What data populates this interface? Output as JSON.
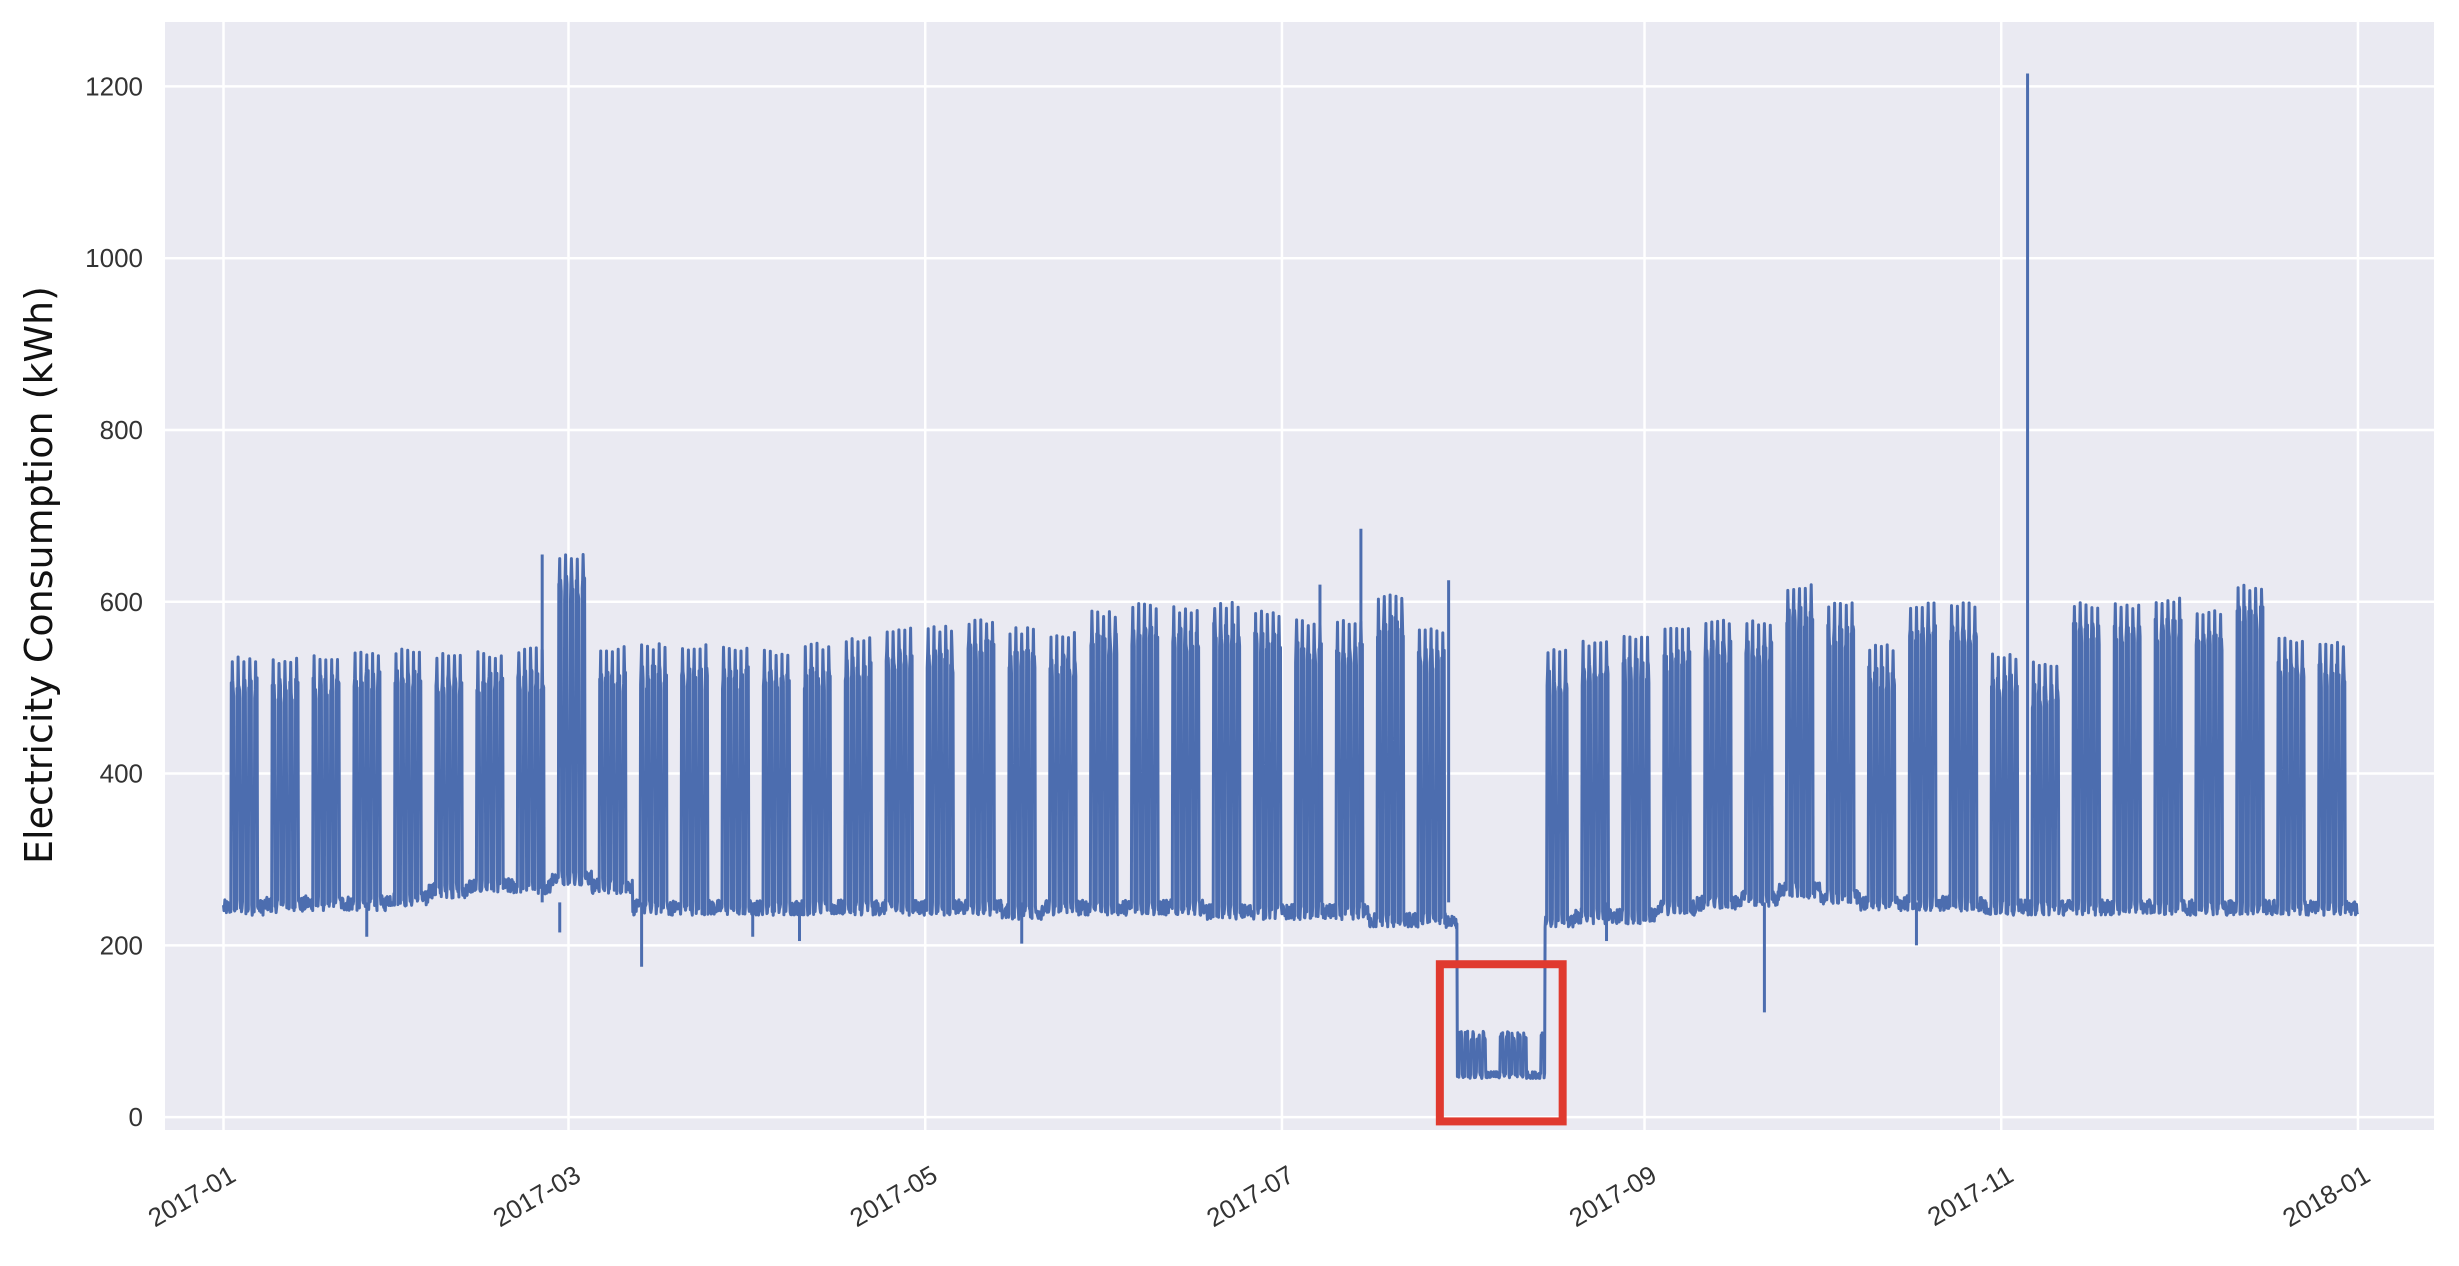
{
  "chart_data": {
    "type": "line",
    "title": "",
    "xlabel": "",
    "ylabel": "Electricity Consumption (kWh)",
    "xlim": [
      "2016-12-22",
      "2018-01-14"
    ],
    "ylim": [
      -15,
      1275
    ],
    "grid": true,
    "x_ticks": [
      "2017-01",
      "2017-03",
      "2017-05",
      "2017-07",
      "2017-09",
      "2017-11",
      "2018-01"
    ],
    "y_ticks": [
      0,
      200,
      400,
      600,
      800,
      1000,
      1200
    ],
    "series": [
      {
        "color": "#4c6daf",
        "start": "2017-01-01",
        "end": "2017-12-31",
        "weekday_peak_kwh": [
          537,
          535,
          540,
          545,
          545,
          540,
          542,
          548,
          655,
          548,
          552,
          550,
          550,
          545,
          552,
          560,
          570,
          572,
          580,
          570,
          565,
          590,
          598,
          595,
          600,
          590,
          580,
          580,
          610,
          570,
          540,
          540,
          545,
          555,
          560,
          570,
          580,
          580,
          620,
          600,
          550,
          600,
          600,
          540,
          530,
          600,
          598,
          605,
          590,
          620,
          560,
          555,
          545,
          540,
          530,
          530,
          525,
          515,
          515,
          520,
          520,
          540,
          538,
          530,
          535,
          530,
          525,
          520,
          520,
          510,
          505
        ],
        "baseline_kwh": [
          245,
          248,
          250,
          250,
          255,
          265,
          270,
          270,
          280,
          270,
          245,
          245,
          245,
          245,
          245,
          245,
          245,
          245,
          245,
          240,
          245,
          245,
          245,
          245,
          240,
          240,
          240,
          240,
          230,
          230,
          230,
          230,
          230,
          235,
          235,
          245,
          250,
          255,
          265,
          258,
          250,
          250,
          250,
          245,
          245,
          245,
          245,
          245,
          245,
          245,
          245,
          245,
          245,
          245,
          245,
          245,
          250,
          250,
          250,
          250,
          250,
          255,
          255,
          255,
          260,
          255,
          250,
          250,
          250,
          250,
          250
        ],
        "outage": {
          "start": "2017-07-31",
          "end": "2017-08-15",
          "low_kwh": 45,
          "high_kwh": 100
        },
        "spikes": [
          {
            "date": "2017-02-24",
            "value": 655
          },
          {
            "date": "2017-07-14",
            "value": 685
          },
          {
            "date": "2017-07-07",
            "value": 620
          },
          {
            "date": "2017-07-29",
            "value": 625
          },
          {
            "date": "2017-11-05",
            "value": 1215
          }
        ],
        "dips": [
          {
            "date": "2017-01-25",
            "value": 210
          },
          {
            "date": "2017-02-27",
            "value": 215
          },
          {
            "date": "2017-03-13",
            "value": 175
          },
          {
            "date": "2017-04-01",
            "value": 210
          },
          {
            "date": "2017-04-09",
            "value": 205
          },
          {
            "date": "2017-05-17",
            "value": 202
          },
          {
            "date": "2017-08-25",
            "value": 205
          },
          {
            "date": "2017-09-21",
            "value": 122
          },
          {
            "date": "2017-10-17",
            "value": 200
          }
        ]
      }
    ],
    "annotation": {
      "shape": "rectangle",
      "color": "#e03a2f",
      "x_range": [
        "2017-07-28",
        "2017-08-18"
      ],
      "y_range": [
        -5,
        178
      ]
    }
  }
}
